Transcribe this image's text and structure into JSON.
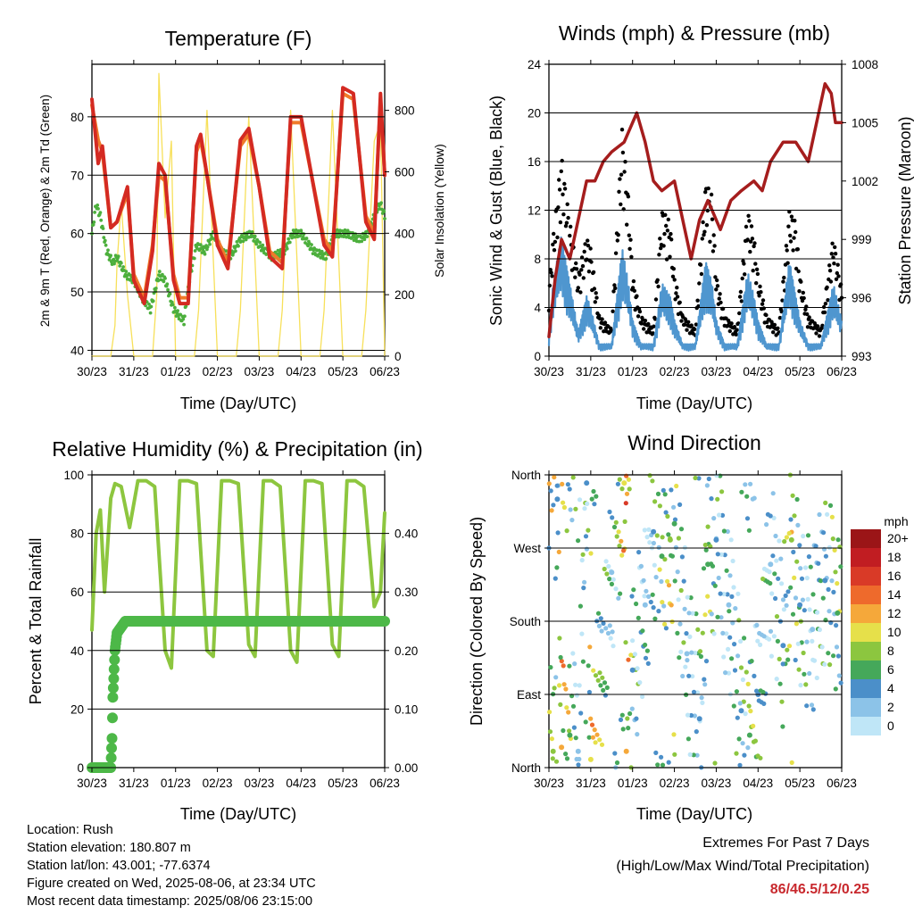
{
  "x_ticks": [
    "30/23",
    "31/23",
    "01/23",
    "02/23",
    "03/23",
    "04/23",
    "05/23",
    "06/23"
  ],
  "panels": {
    "temperature": {
      "title": "Temperature (F)",
      "xlabel": "Time (Day/UTC)",
      "ylabel_left": "2m & 9m T (Red, Orange) & 2m Td (Green)",
      "ylabel_right": "Solar Insolation (Yellow)",
      "left_ticks": [
        "40",
        "50",
        "60",
        "70",
        "80"
      ],
      "right_ticks": [
        "0",
        "200",
        "400",
        "600",
        "800"
      ]
    },
    "winds": {
      "title": "Winds (mph) & Pressure (mb)",
      "xlabel": "Time (Day/UTC)",
      "ylabel_left": "Sonic Wind & Gust (Blue, Black)",
      "ylabel_right": "Station Pressure (Maroon)",
      "left_ticks": [
        "0",
        "4",
        "8",
        "12",
        "16",
        "20",
        "24"
      ],
      "right_ticks": [
        "993",
        "996",
        "999",
        "1002",
        "1005",
        "1008"
      ]
    },
    "humidity": {
      "title": "Relative Humidity (%) & Precipitation (in)",
      "xlabel": "Time (Day/UTC)",
      "ylabel_left": "Percent & Total Rainfall",
      "left_ticks": [
        "0",
        "20",
        "40",
        "60",
        "80",
        "100"
      ],
      "right_ticks": [
        "0.00",
        "0.10",
        "0.20",
        "0.30",
        "0.40"
      ]
    },
    "direction": {
      "title": "Wind Direction",
      "xlabel": "Time (Day/UTC)",
      "ylabel_left": "Direction (Colored By Speed)",
      "left_ticks": [
        "North",
        "East",
        "South",
        "West",
        "North"
      ],
      "legend_title": "mph",
      "legend_labels": [
        "0",
        "2",
        "4",
        "6",
        "8",
        "10",
        "12",
        "14",
        "16",
        "18",
        "20+"
      ],
      "legend_colors": [
        "#bfe6f7",
        "#8cc3e8",
        "#4b8fc9",
        "#45a85a",
        "#8cc63f",
        "#e6e04a",
        "#f5a83a",
        "#ee6a2c",
        "#d93a27",
        "#c11d22",
        "#9b1517"
      ]
    }
  },
  "colors": {
    "temp_2m": "#d42a22",
    "temp_9m": "#f07a2a",
    "dewpoint": "#4caf3c",
    "solar": "#f7e05a",
    "wind": "#4f96cf",
    "gust": "#000000",
    "pressure": "#a51d1d",
    "rh": "#8dc63f",
    "rain": "#4db848",
    "extremes": "#c8282d"
  },
  "footer": {
    "location": "Location: Rush",
    "elevation": "Station elevation: 180.807 m",
    "latlon": "Station lat/lon: 43.001; -77.6374",
    "created": "Figure created on Wed, 2025-08-06, at 23:34 UTC",
    "recent": "Most recent data timestamp: 2025/08/06 23:15:00"
  },
  "extremes": {
    "title": "Extremes For Past 7 Days",
    "subtitle": "(High/Low/Max Wind/Total Precipitation)",
    "values": "86/46.5/12/0.25"
  },
  "chart_data": [
    {
      "type": "line",
      "title": "Temperature (F)",
      "xlabel": "Time (Day/UTC)",
      "ylabel": "2m & 9m T (Red, Orange) & 2m Td (Green)",
      "y2label": "Solar Insolation (Yellow)",
      "x_unit": "days since 30/23",
      "xlim": [
        0,
        7
      ],
      "ylim": [
        39,
        89
      ],
      "y2lim": [
        0,
        950
      ],
      "series": [
        {
          "name": "2m T",
          "axis": "left",
          "x": [
            0,
            0.15,
            0.25,
            0.45,
            0.6,
            0.85,
            1.0,
            1.25,
            1.45,
            1.6,
            1.75,
            1.95,
            2.1,
            2.3,
            2.5,
            2.6,
            2.75,
            3.0,
            3.25,
            3.55,
            3.75,
            4.0,
            4.25,
            4.55,
            4.75,
            5.0,
            5.25,
            5.55,
            5.75,
            6.0,
            6.25,
            6.55,
            6.75,
            6.9,
            7.0
          ],
          "y": [
            83,
            72,
            75,
            61,
            62,
            68,
            52,
            48,
            57,
            72,
            70,
            52,
            48,
            48,
            75,
            77,
            70,
            58,
            54,
            76,
            78,
            68,
            56,
            54,
            80,
            80,
            70,
            58,
            56,
            85,
            84,
            62,
            59,
            84,
            70
          ]
        },
        {
          "name": "9m T",
          "axis": "left",
          "x": [
            0,
            0.15,
            0.25,
            0.45,
            0.6,
            0.85,
            1.0,
            1.25,
            1.45,
            1.6,
            1.75,
            1.95,
            2.1,
            2.3,
            2.5,
            2.6,
            2.75,
            3.0,
            3.25,
            3.55,
            3.75,
            4.0,
            4.25,
            4.55,
            4.75,
            5.0,
            5.25,
            5.55,
            5.75,
            6.0,
            6.25,
            6.55,
            6.75,
            6.9,
            7.0
          ],
          "y": [
            82,
            76,
            74,
            61,
            62,
            67,
            53,
            49,
            58,
            70,
            69,
            53,
            49,
            49,
            74,
            76,
            70,
            59,
            55,
            75,
            77,
            68,
            57,
            55,
            79,
            79,
            70,
            59,
            57,
            84,
            83,
            63,
            60,
            83,
            70
          ]
        },
        {
          "name": "2m Td",
          "axis": "left",
          "x": [
            0,
            0.1,
            0.2,
            0.35,
            0.5,
            0.6,
            0.8,
            1.0,
            1.2,
            1.4,
            1.6,
            1.75,
            1.95,
            2.2,
            2.35,
            2.5,
            2.7,
            2.9,
            3.1,
            3.3,
            3.55,
            3.8,
            4.0,
            4.3,
            4.6,
            4.8,
            5.0,
            5.3,
            5.6,
            5.8,
            6.1,
            6.4,
            6.6,
            6.8,
            6.9,
            7.0
          ],
          "y": [
            60,
            65,
            63,
            57,
            55,
            56,
            53,
            52,
            49,
            47,
            53,
            52,
            47,
            45,
            53,
            58,
            57,
            60,
            57,
            56,
            59,
            60,
            58,
            56,
            57,
            60,
            60,
            57,
            56,
            60,
            60,
            59,
            60,
            64,
            65,
            63
          ]
        },
        {
          "name": "Solar Insolation",
          "axis": "right",
          "x": [
            0,
            0.45,
            0.55,
            0.6,
            0.7,
            0.85,
            1.0,
            1.45,
            1.55,
            1.6,
            1.75,
            1.9,
            2.0,
            2.45,
            2.55,
            2.75,
            3.0,
            3.45,
            3.55,
            3.75,
            4.0,
            4.45,
            4.55,
            4.75,
            5.0,
            5.45,
            5.55,
            5.75,
            6.0,
            6.45,
            6.55,
            6.75,
            6.9,
            7.0
          ],
          "y": [
            0,
            0,
            100,
            300,
            500,
            200,
            0,
            0,
            200,
            920,
            450,
            700,
            0,
            0,
            150,
            800,
            0,
            0,
            150,
            780,
            0,
            0,
            150,
            800,
            0,
            0,
            150,
            800,
            0,
            0,
            150,
            700,
            760,
            0
          ]
        }
      ]
    },
    {
      "type": "scatter",
      "title": "Winds (mph) & Pressure (mb)",
      "xlabel": "Time (Day/UTC)",
      "ylabel": "Sonic Wind & Gust (Blue, Black)",
      "y2label": "Station Pressure (Maroon)",
      "x_unit": "days since 30/23",
      "xlim": [
        0,
        7
      ],
      "ylim": [
        0,
        24
      ],
      "y2lim": [
        993,
        1008
      ],
      "series": [
        {
          "name": "Sonic Wind",
          "axis": "left",
          "x": [
            0,
            0.1,
            0.3,
            0.5,
            0.7,
            0.9,
            1.0,
            1.2,
            1.5,
            1.75,
            1.9,
            2.0,
            2.2,
            2.5,
            2.7,
            2.9,
            3.0,
            3.2,
            3.5,
            3.75,
            3.9,
            4.0,
            4.2,
            4.5,
            4.75,
            4.9,
            5.0,
            5.2,
            5.5,
            5.75,
            5.9,
            6.0,
            6.2,
            6.5,
            6.8,
            7.0
          ],
          "y": [
            2,
            6,
            10,
            6,
            2,
            5,
            4,
            1,
            1,
            9,
            6,
            3,
            1,
            1,
            6,
            5,
            3,
            1,
            1,
            8,
            6,
            3,
            1,
            1,
            7,
            5,
            3,
            1,
            1,
            8,
            5,
            3,
            1,
            1,
            6,
            3
          ]
        },
        {
          "name": "Gust",
          "axis": "left",
          "x": [
            0,
            0.1,
            0.3,
            0.5,
            0.7,
            0.9,
            1.0,
            1.2,
            1.5,
            1.75,
            1.9,
            2.0,
            2.2,
            2.5,
            2.7,
            2.9,
            3.0,
            3.2,
            3.5,
            3.75,
            3.9,
            4.0,
            4.2,
            4.5,
            4.75,
            4.9,
            5.0,
            5.2,
            5.5,
            5.75,
            5.9,
            6.0,
            6.2,
            6.5,
            6.8,
            7.0
          ],
          "y": [
            5,
            9,
            15,
            10,
            6,
            9,
            8,
            3,
            2,
            17,
            12,
            6,
            3,
            2,
            11,
            10,
            6,
            3,
            2,
            13,
            12,
            6,
            3,
            2,
            11,
            9,
            6,
            3,
            2,
            11,
            10,
            6,
            3,
            2,
            9,
            5
          ]
        },
        {
          "name": "Station Pressure",
          "axis": "right",
          "x": [
            0,
            0.15,
            0.3,
            0.5,
            0.7,
            0.9,
            1.1,
            1.3,
            1.5,
            1.8,
            2.1,
            2.3,
            2.5,
            2.7,
            3.0,
            3.2,
            3.4,
            3.6,
            3.8,
            4.1,
            4.35,
            4.6,
            4.9,
            5.1,
            5.3,
            5.6,
            5.9,
            6.2,
            6.45,
            6.6,
            6.75,
            6.85,
            7.0
          ],
          "y": [
            994,
            997,
            999,
            998,
            1000,
            1002,
            1002,
            1003,
            1003.5,
            1004,
            1005.5,
            1004,
            1002,
            1001.5,
            1002,
            1000,
            998,
            1000,
            1001,
            999.5,
            1001,
            1001.5,
            1002,
            1001.5,
            1003,
            1004,
            1004,
            1003,
            1005.5,
            1007,
            1006.5,
            1005,
            1005
          ]
        }
      ]
    },
    {
      "type": "line",
      "title": "Relative Humidity (%) & Precipitation (in)",
      "xlabel": "Time (Day/UTC)",
      "ylabel": "Percent & Total Rainfall",
      "x_unit": "days since 30/23",
      "xlim": [
        0,
        7
      ],
      "ylim": [
        0,
        100
      ],
      "y2lim": [
        0,
        0.5
      ],
      "series": [
        {
          "name": "Relative Humidity",
          "axis": "left",
          "x": [
            0,
            0.1,
            0.2,
            0.3,
            0.45,
            0.55,
            0.7,
            0.9,
            1.1,
            1.3,
            1.5,
            1.75,
            1.9,
            2.1,
            2.3,
            2.5,
            2.75,
            2.9,
            3.1,
            3.3,
            3.5,
            3.75,
            3.9,
            4.1,
            4.3,
            4.5,
            4.75,
            4.9,
            5.1,
            5.3,
            5.5,
            5.75,
            5.9,
            6.1,
            6.3,
            6.5,
            6.75,
            6.9,
            7.0
          ],
          "y": [
            47,
            80,
            88,
            60,
            92,
            97,
            96,
            82,
            98,
            98,
            96,
            40,
            34,
            98,
            98,
            97,
            40,
            38,
            98,
            98,
            97,
            42,
            38,
            98,
            98,
            96,
            40,
            36,
            98,
            98,
            97,
            42,
            38,
            98,
            98,
            96,
            55,
            60,
            87
          ]
        },
        {
          "name": "Total Rainfall",
          "axis": "right",
          "x": [
            0,
            0.45,
            0.48,
            0.5,
            0.55,
            0.6,
            0.7,
            0.8,
            7.0
          ],
          "y": [
            0,
            0,
            0.05,
            0.12,
            0.2,
            0.23,
            0.24,
            0.25,
            0.25
          ]
        }
      ]
    },
    {
      "type": "scatter",
      "title": "Wind Direction",
      "xlabel": "Time (Day/UTC)",
      "ylabel": "Direction (Colored By Speed)",
      "x_unit": "days since 30/23",
      "y_unit": "degrees (North=0, East=90, South=180, West=270, North=360)",
      "xlim": [
        0,
        7
      ],
      "ylim": [
        0,
        360
      ],
      "legend_title": "mph",
      "legend": [
        "0",
        "2",
        "4",
        "6",
        "8",
        "10",
        "12",
        "14",
        "16",
        "18",
        "20+"
      ],
      "series": [
        {
          "name": "Direction",
          "x": [
            0.1,
            0.2,
            0.3,
            0.5,
            0.7,
            0.9,
            1.0,
            1.5,
            1.8,
            1.85,
            2.0,
            2.3,
            2.5,
            2.7,
            2.9,
            3.0,
            3.3,
            3.6,
            3.8,
            4.0,
            4.3,
            4.6,
            4.8,
            5.0,
            5.3,
            5.6,
            5.8,
            6.0,
            6.3,
            6.6,
            6.9
          ],
          "y": [
            20,
            330,
            25,
            40,
            20,
            350,
            10,
            240,
            350,
            20,
            120,
            200,
            290,
            260,
            280,
            300,
            140,
            60,
            250,
            280,
            200,
            70,
            40,
            90,
            250,
            150,
            280,
            200,
            170,
            230,
            190
          ],
          "speed": [
            8,
            4,
            12,
            6,
            2,
            4,
            10,
            2,
            10,
            12,
            4,
            2,
            4,
            6,
            8,
            6,
            2,
            4,
            6,
            4,
            2,
            4,
            6,
            4,
            2,
            4,
            8,
            4,
            2,
            4,
            6
          ]
        }
      ]
    }
  ]
}
